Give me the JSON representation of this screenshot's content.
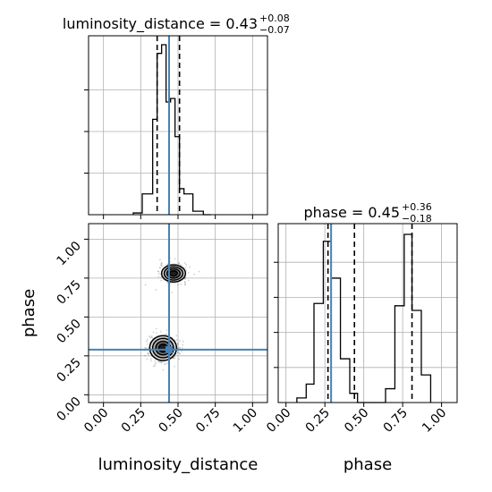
{
  "chart_data": {
    "type": "corner",
    "parameters": [
      "luminosity_distance",
      "phase"
    ],
    "titles": [
      {
        "name": "luminosity_distance",
        "median": "0.43",
        "plus": "+0.08",
        "minus": "−0.07"
      },
      {
        "name": "phase",
        "median": "0.45",
        "plus": "+0.36",
        "minus": "−0.18"
      }
    ],
    "axes": {
      "luminosity_distance": {
        "range": [
          -0.1,
          1.1
        ],
        "ticks": [
          "0.00",
          "0.25",
          "0.50",
          "0.75",
          "1.00"
        ],
        "tick_values": [
          0,
          0.25,
          0.5,
          0.75,
          1.0
        ],
        "label": "luminosity_distance"
      },
      "phase": {
        "range": [
          -0.05,
          1.1
        ],
        "ticks": [
          "0.00",
          "0.25",
          "0.50",
          "0.75",
          "1.00"
        ],
        "tick_values": [
          0,
          0.25,
          0.5,
          0.75,
          1.0
        ],
        "label": "phase"
      }
    },
    "truth": {
      "luminosity_distance": 0.44,
      "phase": 0.29,
      "color": "#4682b4"
    },
    "hist_luminosity_distance": {
      "edges": [
        0.2,
        0.26,
        0.33,
        0.36,
        0.39,
        0.42,
        0.45,
        0.48,
        0.51,
        0.54,
        0.6,
        0.67,
        0.72
      ],
      "counts": [
        0.01,
        0.12,
        0.55,
        0.93,
        0.98,
        0.65,
        0.67,
        0.45,
        0.15,
        0.12,
        0.02,
        0.0
      ],
      "quantile_lines": [
        0.36,
        0.44,
        0.51
      ]
    },
    "hist_phase": {
      "edges": [
        0.07,
        0.13,
        0.18,
        0.24,
        0.29,
        0.35,
        0.41,
        0.46,
        0.52,
        0.58,
        0.64,
        0.7,
        0.76,
        0.81,
        0.87,
        0.93
      ],
      "counts": [
        0.02,
        0.08,
        0.43,
        0.7,
        0.54,
        0.19,
        0.04,
        0.0,
        0.0,
        0.0,
        0.06,
        0.42,
        0.73,
        0.4,
        0.12
      ],
      "quantile_lines": [
        0.27,
        0.44,
        0.81
      ]
    },
    "clusters_2d": [
      {
        "x": 0.47,
        "y": 0.78,
        "sx": 0.08,
        "sy": 0.055
      },
      {
        "x": 0.4,
        "y": 0.3,
        "sx": 0.09,
        "sy": 0.08
      }
    ],
    "grid": true
  }
}
